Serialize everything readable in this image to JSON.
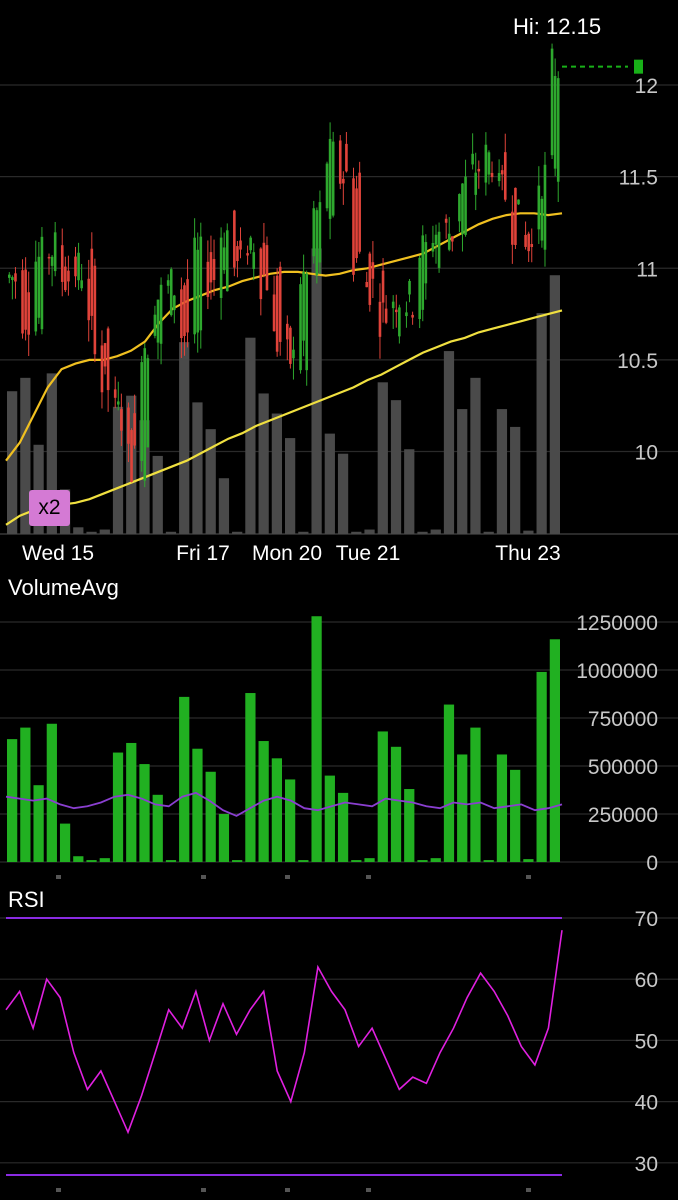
{
  "header": {
    "hi_label": "Hi: 12.15"
  },
  "colors": {
    "up": "#2ea82e",
    "down": "#e0433a",
    "ma_short": "#f0c020",
    "ma_long": "#f0e040",
    "volume_gray": "#4a4a4a",
    "volume_green": "#21b021",
    "vol_avg": "#8a3fd0",
    "rsi_line": "#e020e0",
    "rsi_bounds": "#8a2be2",
    "grid": "#2a2a2a",
    "badge": "#d47ad4",
    "last_price": "#18b018"
  },
  "badge": {
    "text": "x2"
  },
  "price_chart": {
    "y_ticks": [
      "12",
      "11.5",
      "11",
      "10.5",
      "10"
    ],
    "x_ticks": [
      "Wed 15",
      "Fri 17",
      "Mon 20",
      "Tue 21",
      "Thu 23"
    ]
  },
  "volume_panel": {
    "title": "VolumeAvg",
    "y_ticks": [
      "1250000",
      "1000000",
      "750000",
      "500000",
      "250000",
      "0"
    ]
  },
  "rsi_panel": {
    "title": "RSI",
    "y_ticks": [
      "70",
      "60",
      "50",
      "40",
      "30"
    ]
  },
  "chart_data": [
    {
      "type": "candlestick",
      "title": "",
      "high_label": "Hi: 12.15",
      "x_ticks": [
        "Wed 15",
        "Fri 17",
        "Mon 20",
        "Tue 21",
        "Thu 23"
      ],
      "ylim": [
        9.55,
        12.3
      ],
      "grid": true,
      "moving_average_short": [
        9.95,
        10.05,
        10.2,
        10.35,
        10.45,
        10.48,
        10.5,
        10.5,
        10.52,
        10.55,
        10.6,
        10.7,
        10.78,
        10.82,
        10.85,
        10.88,
        10.9,
        10.93,
        10.95,
        10.97,
        10.98,
        10.98,
        10.97,
        10.96,
        10.97,
        10.99,
        11.0,
        11.02,
        11.04,
        11.06,
        11.08,
        11.12,
        11.16,
        11.2,
        11.24,
        11.27,
        11.29,
        11.3,
        11.3,
        11.29,
        11.3
      ],
      "moving_average_long": [
        9.6,
        9.65,
        9.68,
        9.7,
        9.71,
        9.72,
        9.74,
        9.77,
        9.8,
        9.83,
        9.86,
        9.89,
        9.92,
        9.95,
        9.99,
        10.03,
        10.07,
        10.1,
        10.14,
        10.17,
        10.2,
        10.23,
        10.26,
        10.29,
        10.32,
        10.35,
        10.39,
        10.42,
        10.46,
        10.5,
        10.54,
        10.57,
        10.6,
        10.62,
        10.65,
        10.67,
        10.69,
        10.71,
        10.73,
        10.75,
        10.77
      ],
      "close": [
        10.95,
        10.75,
        11.05,
        11.1,
        10.95,
        11.0,
        10.65,
        10.35,
        10.2,
        9.95,
        10.6,
        10.85,
        10.9,
        10.65,
        11.05,
        10.95,
        11.2,
        11.0,
        11.15,
        10.95,
        10.6,
        10.5,
        10.95,
        11.3,
        11.6,
        11.5,
        11.05,
        10.9,
        10.75,
        10.85,
        10.82,
        11.1,
        11.2,
        11.2,
        11.45,
        11.55,
        11.6,
        11.4,
        11.25,
        11.1,
        11.5,
        12.1
      ],
      "last_price": 12.1
    },
    {
      "type": "bar",
      "title": "VolumeAvg",
      "ylim": [
        0,
        1250000
      ],
      "series": [
        {
          "values": [
            640000,
            700000,
            400000,
            720000,
            200000,
            30000,
            10000,
            20000,
            570000,
            620000,
            510000,
            350000,
            10000,
            860000,
            590000,
            470000,
            250000,
            10000,
            880000,
            630000,
            540000,
            430000,
            10000,
            1280000,
            450000,
            360000,
            10000,
            20000,
            680000,
            600000,
            380000,
            10000,
            20000,
            820000,
            560000,
            700000,
            10000,
            560000,
            480000,
            15000,
            990000,
            1160000
          ]
        },
        {
          "values": [
            340000,
            330000,
            320000,
            330000,
            300000,
            280000,
            290000,
            310000,
            340000,
            350000,
            330000,
            300000,
            290000,
            340000,
            360000,
            320000,
            270000,
            240000,
            280000,
            320000,
            340000,
            320000,
            280000,
            270000,
            290000,
            310000,
            300000,
            290000,
            330000,
            320000,
            310000,
            290000,
            280000,
            310000,
            300000,
            310000,
            280000,
            290000,
            300000,
            270000,
            280000,
            300000
          ]
        }
      ]
    },
    {
      "type": "line",
      "title": "RSI",
      "ylim": [
        28,
        72
      ],
      "reference_lines": [
        70,
        30
      ],
      "series": [
        {
          "values": [
            55,
            58,
            52,
            60,
            57,
            48,
            42,
            45,
            40,
            35,
            41,
            48,
            55,
            52,
            58,
            50,
            56,
            51,
            55,
            58,
            45,
            40,
            48,
            62,
            58,
            55,
            49,
            52,
            47,
            42,
            44,
            43,
            48,
            52,
            57,
            61,
            58,
            54,
            49,
            46,
            52,
            68
          ]
        }
      ]
    }
  ]
}
